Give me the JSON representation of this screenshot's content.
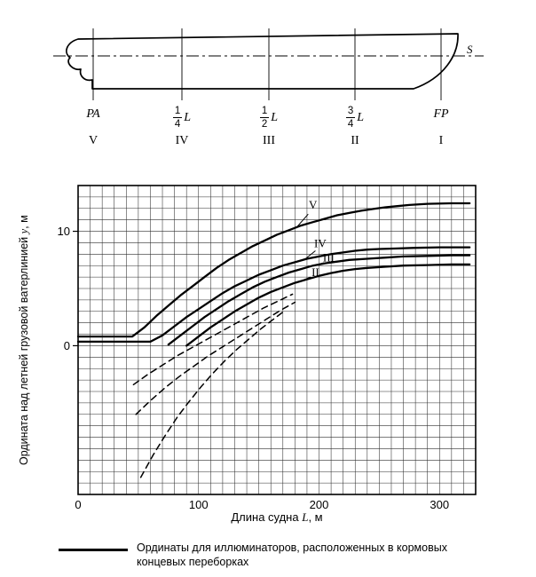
{
  "figure": {
    "ship": {
      "waterline_label": "S",
      "stations": [
        {
          "label": "PA",
          "roman": "V"
        },
        {
          "frac_num": "1",
          "frac_den": "4",
          "frac_symbol": "L",
          "roman": "IV"
        },
        {
          "frac_num": "1",
          "frac_den": "2",
          "frac_symbol": "L",
          "roman": "III"
        },
        {
          "frac_num": "3",
          "frac_den": "4",
          "frac_symbol": "L",
          "roman": "II"
        },
        {
          "label": "FP",
          "roman": "I"
        }
      ]
    },
    "legend": {
      "text": "Ординаты для иллюминаторов, расположенных в кормовых концевых переборках"
    }
  },
  "chart_data": {
    "type": "line",
    "xlabel_prefix": "Длина судна ",
    "xlabel_symbol": "L",
    "xlabel_suffix": ", м",
    "ylabel_prefix": "Ордината над летней грузовой ватерлинией ",
    "ylabel_symbol": "y",
    "ylabel_suffix": ", м",
    "xlim": [
      0,
      330
    ],
    "ylim": [
      -13,
      14
    ],
    "x_ticks": [
      0,
      100,
      200,
      300
    ],
    "y_ticks": [
      0,
      10
    ],
    "grid_step_x": 10,
    "grid_step_y": 1,
    "grid": true,
    "series": [
      {
        "name": "V",
        "style": "solid",
        "points": [
          [
            0,
            0.8
          ],
          [
            45,
            0.8
          ],
          [
            55,
            1.6
          ],
          [
            65,
            2.6
          ],
          [
            75,
            3.5
          ],
          [
            85,
            4.4
          ],
          [
            95,
            5.2
          ],
          [
            105,
            6.0
          ],
          [
            115,
            6.8
          ],
          [
            125,
            7.5
          ],
          [
            135,
            8.1
          ],
          [
            145,
            8.7
          ],
          [
            155,
            9.2
          ],
          [
            165,
            9.7
          ],
          [
            175,
            10.1
          ],
          [
            185,
            10.5
          ],
          [
            195,
            10.8
          ],
          [
            205,
            11.1
          ],
          [
            215,
            11.4
          ],
          [
            225,
            11.6
          ],
          [
            235,
            11.8
          ],
          [
            245,
            11.95
          ],
          [
            255,
            12.1
          ],
          [
            265,
            12.2
          ],
          [
            275,
            12.3
          ],
          [
            290,
            12.4
          ],
          [
            310,
            12.45
          ],
          [
            325,
            12.45
          ]
        ]
      },
      {
        "name": "IV",
        "style": "solid",
        "points": [
          [
            0,
            0.35
          ],
          [
            60,
            0.35
          ],
          [
            70,
            0.9
          ],
          [
            80,
            1.7
          ],
          [
            90,
            2.5
          ],
          [
            100,
            3.2
          ],
          [
            110,
            3.9
          ],
          [
            120,
            4.6
          ],
          [
            130,
            5.2
          ],
          [
            140,
            5.7
          ],
          [
            150,
            6.2
          ],
          [
            160,
            6.6
          ],
          [
            170,
            7.0
          ],
          [
            180,
            7.3
          ],
          [
            190,
            7.6
          ],
          [
            200,
            7.8
          ],
          [
            210,
            8.0
          ],
          [
            220,
            8.15
          ],
          [
            230,
            8.3
          ],
          [
            240,
            8.4
          ],
          [
            250,
            8.45
          ],
          [
            265,
            8.5
          ],
          [
            280,
            8.55
          ],
          [
            300,
            8.6
          ],
          [
            325,
            8.6
          ]
        ]
      },
      {
        "name": "III",
        "style": "solid",
        "points": [
          [
            75,
            0.1
          ],
          [
            85,
            0.9
          ],
          [
            95,
            1.7
          ],
          [
            105,
            2.5
          ],
          [
            115,
            3.2
          ],
          [
            125,
            3.9
          ],
          [
            135,
            4.5
          ],
          [
            145,
            5.1
          ],
          [
            155,
            5.6
          ],
          [
            165,
            6.0
          ],
          [
            175,
            6.4
          ],
          [
            185,
            6.7
          ],
          [
            195,
            7.0
          ],
          [
            205,
            7.2
          ],
          [
            215,
            7.35
          ],
          [
            225,
            7.5
          ],
          [
            240,
            7.6
          ],
          [
            255,
            7.7
          ],
          [
            270,
            7.8
          ],
          [
            290,
            7.85
          ],
          [
            310,
            7.9
          ],
          [
            325,
            7.9
          ]
        ]
      },
      {
        "name": "II",
        "style": "solid",
        "points": [
          [
            90,
            0.0
          ],
          [
            100,
            0.8
          ],
          [
            110,
            1.6
          ],
          [
            120,
            2.3
          ],
          [
            130,
            3.0
          ],
          [
            140,
            3.6
          ],
          [
            150,
            4.2
          ],
          [
            160,
            4.7
          ],
          [
            170,
            5.1
          ],
          [
            180,
            5.5
          ],
          [
            190,
            5.8
          ],
          [
            200,
            6.1
          ],
          [
            210,
            6.35
          ],
          [
            220,
            6.55
          ],
          [
            230,
            6.7
          ],
          [
            240,
            6.8
          ],
          [
            255,
            6.9
          ],
          [
            270,
            7.0
          ],
          [
            290,
            7.05
          ],
          [
            310,
            7.1
          ],
          [
            325,
            7.1
          ]
        ]
      },
      {
        "name": "dashed-1",
        "style": "dashed",
        "points": [
          [
            46,
            -3.4
          ],
          [
            58,
            -2.5
          ],
          [
            70,
            -1.7
          ],
          [
            82,
            -0.9
          ],
          [
            94,
            -0.2
          ],
          [
            106,
            0.5
          ],
          [
            118,
            1.2
          ],
          [
            130,
            1.9
          ],
          [
            142,
            2.6
          ],
          [
            154,
            3.3
          ],
          [
            166,
            3.9
          ],
          [
            178,
            4.5
          ]
        ]
      },
      {
        "name": "dashed-2",
        "style": "dashed",
        "points": [
          [
            48,
            -6.0
          ],
          [
            60,
            -4.8
          ],
          [
            72,
            -3.7
          ],
          [
            84,
            -2.7
          ],
          [
            96,
            -1.8
          ],
          [
            108,
            -0.9
          ],
          [
            120,
            -0.1
          ],
          [
            132,
            0.7
          ],
          [
            144,
            1.5
          ],
          [
            156,
            2.3
          ],
          [
            168,
            3.1
          ],
          [
            180,
            3.8
          ]
        ]
      },
      {
        "name": "dashed-3",
        "style": "dashed",
        "points": [
          [
            52,
            -11.5
          ],
          [
            62,
            -9.6
          ],
          [
            72,
            -7.9
          ],
          [
            82,
            -6.3
          ],
          [
            92,
            -4.9
          ],
          [
            102,
            -3.6
          ],
          [
            112,
            -2.4
          ],
          [
            122,
            -1.3
          ],
          [
            132,
            -0.3
          ],
          [
            142,
            0.6
          ],
          [
            152,
            1.5
          ],
          [
            162,
            2.3
          ],
          [
            172,
            3.1
          ]
        ]
      }
    ],
    "annotations": [
      {
        "text": "V",
        "x": 195,
        "y": 12.0,
        "leader": [
          [
            191,
            11.5
          ],
          [
            181,
            10.3
          ]
        ]
      },
      {
        "text": "IV",
        "x": 201,
        "y": 8.6,
        "leader": [
          [
            197,
            8.3
          ],
          [
            189,
            7.62
          ]
        ]
      },
      {
        "text": "III",
        "x": 208,
        "y": 7.35,
        "leader": [
          [
            204,
            7.25
          ],
          [
            196,
            7.02
          ]
        ]
      },
      {
        "text": "II",
        "x": 197,
        "y": 6.1,
        "leader": [
          [
            193,
            6.0
          ],
          [
            186,
            5.7
          ]
        ]
      }
    ]
  }
}
